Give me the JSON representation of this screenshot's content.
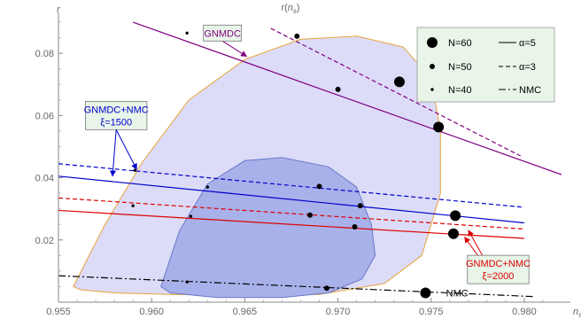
{
  "chart_data": {
    "type": "line",
    "title": "r(n_s)",
    "xlabel": "n_s",
    "ylabel": "r",
    "xlim": [
      0.955,
      0.982
    ],
    "ylim": [
      0.0,
      0.092
    ],
    "xticks": [
      "0.955",
      "0.960",
      "0.965",
      "0.970",
      "0.975",
      "0.980"
    ],
    "yticks": [
      "0.02",
      "0.04",
      "0.06",
      "0.08"
    ],
    "grid": false,
    "legend_position": "top-right",
    "legend": {
      "markers": [
        {
          "label": "N=60",
          "size": "large"
        },
        {
          "label": "N=50",
          "size": "medium"
        },
        {
          "label": "N=40",
          "size": "small"
        }
      ],
      "lines": [
        {
          "label": "α=5",
          "dash": "solid"
        },
        {
          "label": "α=3",
          "dash": "dashed"
        },
        {
          "label": "NMC",
          "dash": "dashdot"
        }
      ]
    },
    "contours": [
      {
        "name": "outer",
        "color": "#e8a33a",
        "fill": "#dcdcf8",
        "x": [
          0.9558,
          0.9575,
          0.9595,
          0.962,
          0.965,
          0.968,
          0.971,
          0.9735,
          0.975,
          0.9755,
          0.9755,
          0.9745,
          0.9725,
          0.969,
          0.965,
          0.961,
          0.958,
          0.9562,
          0.9558
        ],
        "y": [
          0.005,
          0.025,
          0.045,
          0.065,
          0.078,
          0.0845,
          0.0855,
          0.082,
          0.072,
          0.055,
          0.035,
          0.015,
          0.006,
          0.0025,
          0.0022,
          0.0025,
          0.003,
          0.004,
          0.005
        ]
      },
      {
        "name": "inner",
        "color": "#6a78c8",
        "fill": "#a9b1ea",
        "x": [
          0.9605,
          0.9615,
          0.963,
          0.965,
          0.967,
          0.9695,
          0.971,
          0.9718,
          0.972,
          0.9713,
          0.9695,
          0.967,
          0.9635,
          0.961,
          0.9605
        ],
        "y": [
          0.005,
          0.023,
          0.038,
          0.0455,
          0.0465,
          0.0435,
          0.037,
          0.025,
          0.015,
          0.0075,
          0.003,
          0.0015,
          0.0015,
          0.003,
          0.005
        ]
      }
    ],
    "series": [
      {
        "color": "#800080",
        "dash": "solid",
        "x": [
          0.959,
          0.982
        ],
        "y": [
          0.09,
          0.041
        ]
      },
      {
        "color": "#800080",
        "dash": "dashed",
        "x": [
          0.9664,
          0.9798
        ],
        "y": [
          0.088,
          0.047
        ]
      },
      {
        "color": "#0000cc",
        "dash": "solid",
        "x": [
          0.955,
          0.98
        ],
        "y": [
          0.0405,
          0.0255
        ]
      },
      {
        "color": "#0000cc",
        "dash": "dashed",
        "x": [
          0.955,
          0.98
        ],
        "y": [
          0.0445,
          0.0305
        ]
      },
      {
        "color": "#dd0000",
        "dash": "solid",
        "x": [
          0.955,
          0.98
        ],
        "y": [
          0.0295,
          0.0205
        ]
      },
      {
        "color": "#dd0000",
        "dash": "dashed",
        "x": [
          0.955,
          0.98
        ],
        "y": [
          0.0335,
          0.0235
        ]
      },
      {
        "color": "#000000",
        "dash": "dashdot",
        "x": [
          0.955,
          0.9805
        ],
        "y": [
          0.0085,
          0.0018
        ]
      }
    ],
    "points": [
      {
        "x": 0.9619,
        "y": 0.0865,
        "size": "small"
      },
      {
        "x": 0.9678,
        "y": 0.0855,
        "size": "medium"
      },
      {
        "x": 0.97,
        "y": 0.0684,
        "size": "medium"
      },
      {
        "x": 0.9733,
        "y": 0.0708,
        "size": "large"
      },
      {
        "x": 0.9754,
        "y": 0.0563,
        "size": "large"
      },
      {
        "x": 0.9591,
        "y": 0.0424,
        "size": "small"
      },
      {
        "x": 0.959,
        "y": 0.031,
        "size": "small"
      },
      {
        "x": 0.963,
        "y": 0.037,
        "size": "small"
      },
      {
        "x": 0.9621,
        "y": 0.0276,
        "size": "small"
      },
      {
        "x": 0.969,
        "y": 0.0372,
        "size": "medium"
      },
      {
        "x": 0.9685,
        "y": 0.028,
        "size": "medium"
      },
      {
        "x": 0.9712,
        "y": 0.031,
        "size": "medium"
      },
      {
        "x": 0.9709,
        "y": 0.0242,
        "size": "medium"
      },
      {
        "x": 0.9763,
        "y": 0.0278,
        "size": "large"
      },
      {
        "x": 0.9762,
        "y": 0.022,
        "size": "large"
      },
      {
        "x": 0.9619,
        "y": 0.0065,
        "size": "small"
      },
      {
        "x": 0.9694,
        "y": 0.0045,
        "size": "medium"
      },
      {
        "x": 0.9747,
        "y": 0.003,
        "size": "large"
      }
    ],
    "annotations": [
      {
        "text": [
          "GNMDC"
        ],
        "color": "#800080",
        "box_fill": "#e8f5e8",
        "box_stroke": "#777777",
        "anchor_x": 0.9638,
        "anchor_y": 0.0865,
        "arrows": [
          [
            0.9651,
            0.079
          ]
        ]
      },
      {
        "text": [
          "GNMDC+NMC",
          "ξ=1500"
        ],
        "color": "#0000cc",
        "box_fill": "#e8f5e8",
        "box_stroke": "#777777",
        "anchor_x": 0.9581,
        "anchor_y": 0.06,
        "arrows": [
          [
            0.9579,
            0.0405
          ],
          [
            0.9592,
            0.0427
          ]
        ]
      },
      {
        "text": [
          "GNMDC+NMC",
          "ξ=2000"
        ],
        "color": "#dd0000",
        "box_fill": "#e8f5e8",
        "box_stroke": "#777777",
        "anchor_x": 0.9786,
        "anchor_y": 0.0105,
        "arrows": [
          [
            0.9768,
            0.0209
          ],
          [
            0.977,
            0.0231
          ]
        ]
      },
      {
        "text": [
          "NMC"
        ],
        "color": "#000000",
        "box_fill": "none",
        "box_stroke": "none",
        "anchor_x": 0.9764,
        "anchor_y": 0.003,
        "arrows": []
      }
    ]
  }
}
